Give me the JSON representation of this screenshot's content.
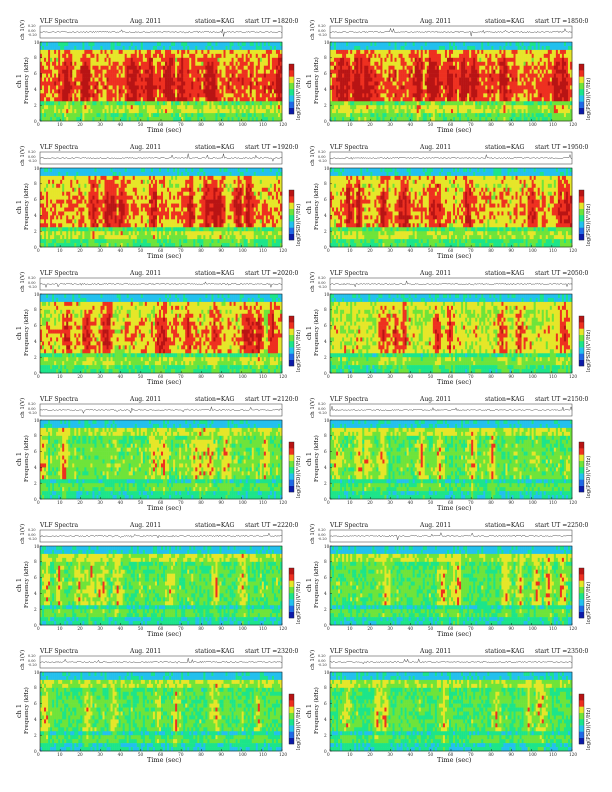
{
  "page": {
    "background": "#ffffff"
  },
  "colormap": [
    "#0b1aa8",
    "#1f68e6",
    "#23c0ee",
    "#1ce58a",
    "#6ee43a",
    "#e6e629",
    "#ee3020",
    "#b81414"
  ],
  "common": {
    "title_left": "VLF Spectra",
    "date": "Aug. 2011",
    "station": "station=KAG",
    "ylabel_top": "ch 1(V)",
    "ylabel_spec": "ch 1",
    "ylabel_freq": "Frequency (kHz)",
    "xlabel": "Time (sec)",
    "colorbar_label": "log(PSD)(V²/Hz)",
    "x_ticks": [
      "0",
      "10",
      "20",
      "30",
      "40",
      "50",
      "60",
      "70",
      "80",
      "90",
      "100",
      "110",
      "120"
    ],
    "y_ticks": [
      "0",
      "2",
      "4",
      "6",
      "8",
      "10"
    ],
    "top_ticks": [
      "0.20",
      "0.00",
      "-0.20"
    ]
  },
  "chart_data": [
    {
      "type": "heatmap",
      "title": "VLF Spectra  Aug. 2011  station=KAG  start UT =1820:0",
      "start_ut": "start  UT  =1820:0",
      "intensity": 0.82,
      "xlim": [
        0,
        120
      ],
      "ylim": [
        0,
        10
      ]
    },
    {
      "type": "heatmap",
      "title": "VLF Spectra  Aug. 2011  station=KAG  start UT =1850:0",
      "start_ut": "start  UT  =1850:0",
      "intensity": 0.82,
      "xlim": [
        0,
        120
      ],
      "ylim": [
        0,
        10
      ]
    },
    {
      "type": "heatmap",
      "title": "VLF Spectra  Aug. 2011  station=KAG  start UT =1920:0",
      "start_ut": "start  UT  =1920:0",
      "intensity": 0.72,
      "xlim": [
        0,
        120
      ],
      "ylim": [
        0,
        10
      ]
    },
    {
      "type": "heatmap",
      "title": "VLF Spectra  Aug. 2011  station=KAG  start UT =1950:0",
      "start_ut": "start  UT  =1950:0",
      "intensity": 0.7,
      "xlim": [
        0,
        120
      ],
      "ylim": [
        0,
        10
      ]
    },
    {
      "type": "heatmap",
      "title": "VLF Spectra  Aug. 2011  station=KAG  start UT =2020:0",
      "start_ut": "start  UT  =2020:0",
      "intensity": 0.68,
      "xlim": [
        0,
        120
      ],
      "ylim": [
        0,
        10
      ]
    },
    {
      "type": "heatmap",
      "title": "VLF Spectra  Aug. 2011  station=KAG  start UT =2050:0",
      "start_ut": "start  UT  =2050:0",
      "intensity": 0.58,
      "xlim": [
        0,
        120
      ],
      "ylim": [
        0,
        10
      ]
    },
    {
      "type": "heatmap",
      "title": "VLF Spectra  Aug. 2011  station=KAG  start UT =2120:0",
      "start_ut": "start  UT  =2120:0",
      "intensity": 0.38,
      "xlim": [
        0,
        120
      ],
      "ylim": [
        0,
        10
      ]
    },
    {
      "type": "heatmap",
      "title": "VLF Spectra  Aug. 2011  station=KAG  start UT =2150:0",
      "start_ut": "start  UT  =2150:0",
      "intensity": 0.36,
      "xlim": [
        0,
        120
      ],
      "ylim": [
        0,
        10
      ]
    },
    {
      "type": "heatmap",
      "title": "VLF Spectra  Aug. 2011  station=KAG  start UT =2220:0",
      "start_ut": "start  UT  =2220:0",
      "intensity": 0.34,
      "xlim": [
        0,
        120
      ],
      "ylim": [
        0,
        10
      ]
    },
    {
      "type": "heatmap",
      "title": "VLF Spectra  Aug. 2011  station=KAG  start UT =2250:0",
      "start_ut": "start  UT  =2250:0",
      "intensity": 0.34,
      "xlim": [
        0,
        120
      ],
      "ylim": [
        0,
        10
      ]
    },
    {
      "type": "heatmap",
      "title": "VLF Spectra  Aug. 2011  station=KAG  start UT =2320:0",
      "start_ut": "start  UT  =2320:0",
      "intensity": 0.3,
      "xlim": [
        0,
        120
      ],
      "ylim": [
        0,
        10
      ]
    },
    {
      "type": "heatmap",
      "title": "VLF Spectra  Aug. 2011  station=KAG  start UT =2350:0",
      "start_ut": "start  UT  =2350:0",
      "intensity": 0.3,
      "xlim": [
        0,
        120
      ],
      "ylim": [
        0,
        10
      ]
    }
  ]
}
